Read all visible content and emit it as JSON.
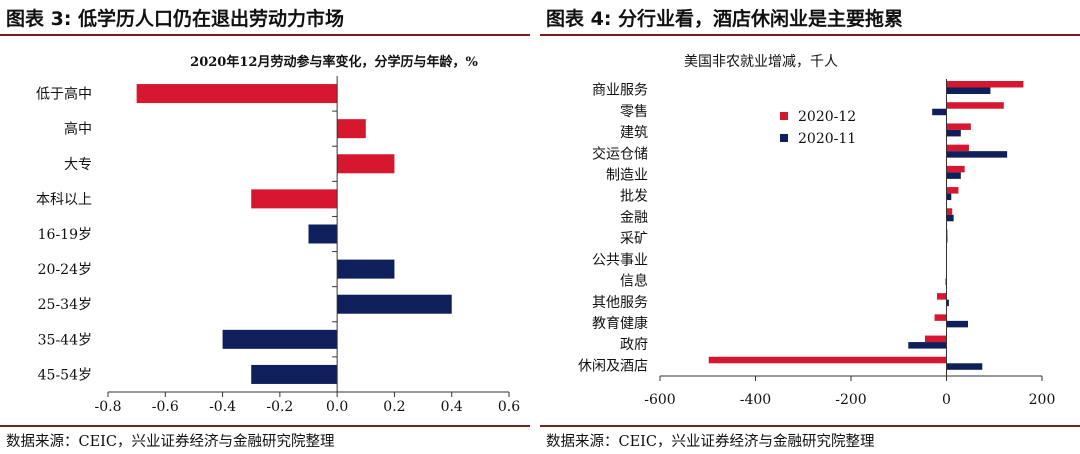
{
  "left": {
    "header": "图表 3:  低学历人口仍在退出劳动力市场",
    "source": "数据来源：CEIC，兴业证券经济与金融研究院整理",
    "chart_data": {
      "type": "bar",
      "orientation": "horizontal",
      "title": "2020年12月劳动参与率变化，分学历与年龄，%",
      "categories": [
        "低于高中",
        "高中",
        "大专",
        "本科以上",
        "16-19岁",
        "20-24岁",
        "25-34岁",
        "35-44岁",
        "45-54岁"
      ],
      "values": [
        -0.7,
        0.1,
        0.2,
        -0.3,
        -0.1,
        0.2,
        0.4,
        -0.4,
        -0.3
      ],
      "bar_colors": [
        "#d7172f",
        "#d7172f",
        "#d7172f",
        "#d7172f",
        "#0f1f5c",
        "#0f1f5c",
        "#0f1f5c",
        "#0f1f5c",
        "#0f1f5c"
      ],
      "xlim": [
        -0.8,
        0.6
      ],
      "xticks": [
        "-0.8",
        "-0.6",
        "-0.4",
        "-0.2",
        "0.0",
        "0.2",
        "0.4",
        "0.6"
      ],
      "grid": false
    }
  },
  "right": {
    "header": "图表 4:  分行业看，酒店休闲业是主要拖累",
    "source": "数据来源：CEIC，兴业证券经济与金融研究院整理",
    "chart_data": {
      "type": "bar",
      "orientation": "horizontal",
      "title": "美国非农就业增减，千人",
      "categories": [
        "商业服务",
        "零售",
        "建筑",
        "交运仓储",
        "制造业",
        "批发",
        "金融",
        "采矿",
        "公共事业",
        "信息",
        "其他服务",
        "教育健康",
        "政府",
        "休闲及酒店"
      ],
      "series": [
        {
          "name": "2020-12",
          "color": "#d7172f",
          "values": [
            161,
            120,
            51,
            47,
            38,
            25,
            12,
            2,
            1,
            0,
            -20,
            -25,
            -45,
            -498
          ]
        },
        {
          "name": "2020-11",
          "color": "#0f1f5c",
          "values": [
            92,
            -30,
            30,
            127,
            30,
            10,
            15,
            2,
            1,
            -2,
            5,
            45,
            -80,
            75
          ]
        }
      ],
      "xlim": [
        -600,
        200
      ],
      "xticks": [
        "-600",
        "-400",
        "-200",
        "0",
        "200"
      ],
      "legend": "top-left",
      "grid": false
    }
  }
}
